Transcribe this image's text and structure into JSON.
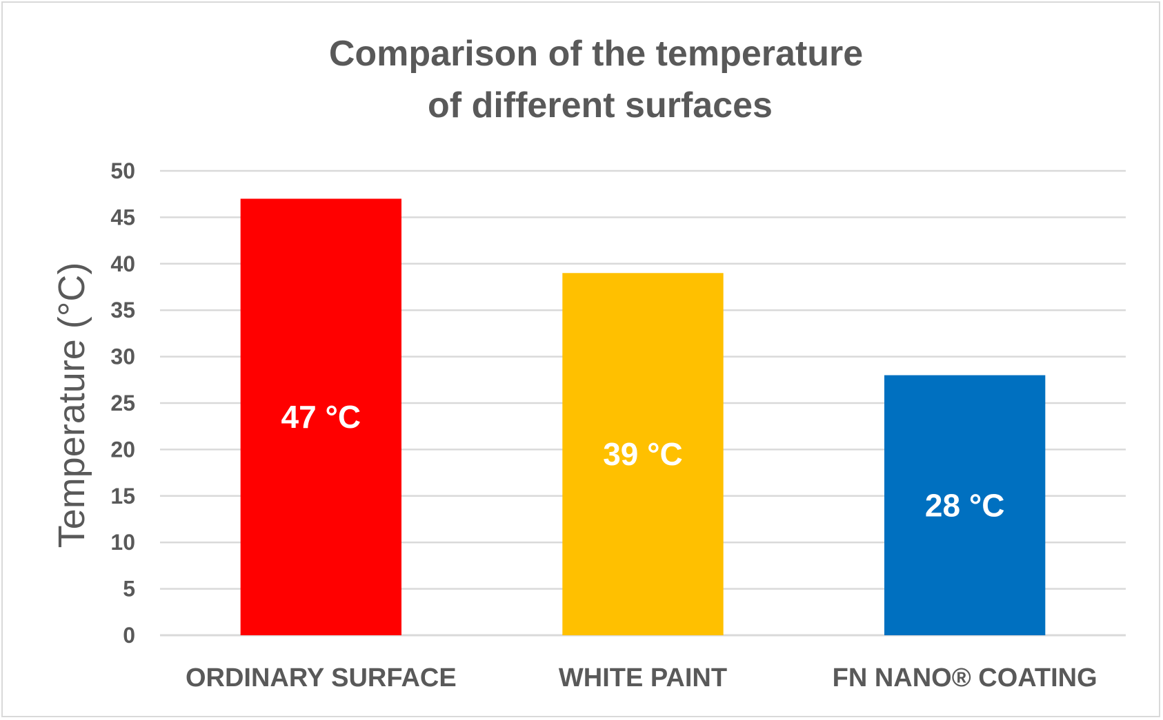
{
  "chart_data": {
    "type": "bar",
    "title_lines": [
      "Comparison of the temperature",
      "of different surfaces"
    ],
    "ylabel": "Temperature (°C)",
    "xlabel": "",
    "categories": [
      "ORDINARY SURFACE",
      "WHITE PAINT",
      "FN NANO® COATING"
    ],
    "values": [
      47,
      39,
      28
    ],
    "data_labels": [
      "47 °C",
      "39 °C",
      "28 °C"
    ],
    "colors": [
      "#ff0000",
      "#ffc000",
      "#0070c0"
    ],
    "ylim": [
      0,
      50
    ],
    "yticks": [
      0,
      5,
      10,
      15,
      20,
      25,
      30,
      35,
      40,
      45,
      50
    ],
    "grid": true,
    "legend": "none"
  }
}
